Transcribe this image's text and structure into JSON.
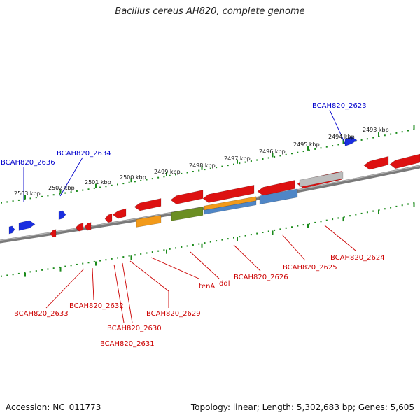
{
  "title": "Bacillus cereus AH820, complete genome",
  "footer": {
    "accession": "Accession: NC_011773",
    "summary": "Topology: linear; Length: 5,302,683 bp; Genes: 5,605"
  },
  "scale": {
    "ticks": [
      "2503 kbp",
      "2502 kbp",
      "2501 kbp",
      "2500 kbp",
      "2499 kbp",
      "2498 kbp",
      "2497 kbp",
      "2496 kbp",
      "2495 kbp",
      "2494 kbp",
      "2493 kbp"
    ]
  },
  "colors": {
    "forward_label": "#0000cc",
    "reverse_label": "#cc0000",
    "backbone": "#7a7a7a",
    "tick": "#1a8a1a",
    "gene_red": "#dd1111",
    "gene_blue": "#1a2ee0",
    "gene_orange": "#f29a1a",
    "gene_green": "#6b8e23",
    "gene_steel": "#4f86c6",
    "gene_gray": "#bdbdbd"
  },
  "forward_labels": [
    "BCAH820_2636",
    "BCAH820_2634",
    "BCAH820_2623"
  ],
  "reverse_labels": [
    "BCAH820_2633",
    "BCAH820_2632",
    "BCAH820_2630",
    "BCAH820_2631",
    "BCAH820_2629",
    "tenA",
    "ddl",
    "BCAH820_2626",
    "BCAH820_2625",
    "BCAH820_2624"
  ]
}
